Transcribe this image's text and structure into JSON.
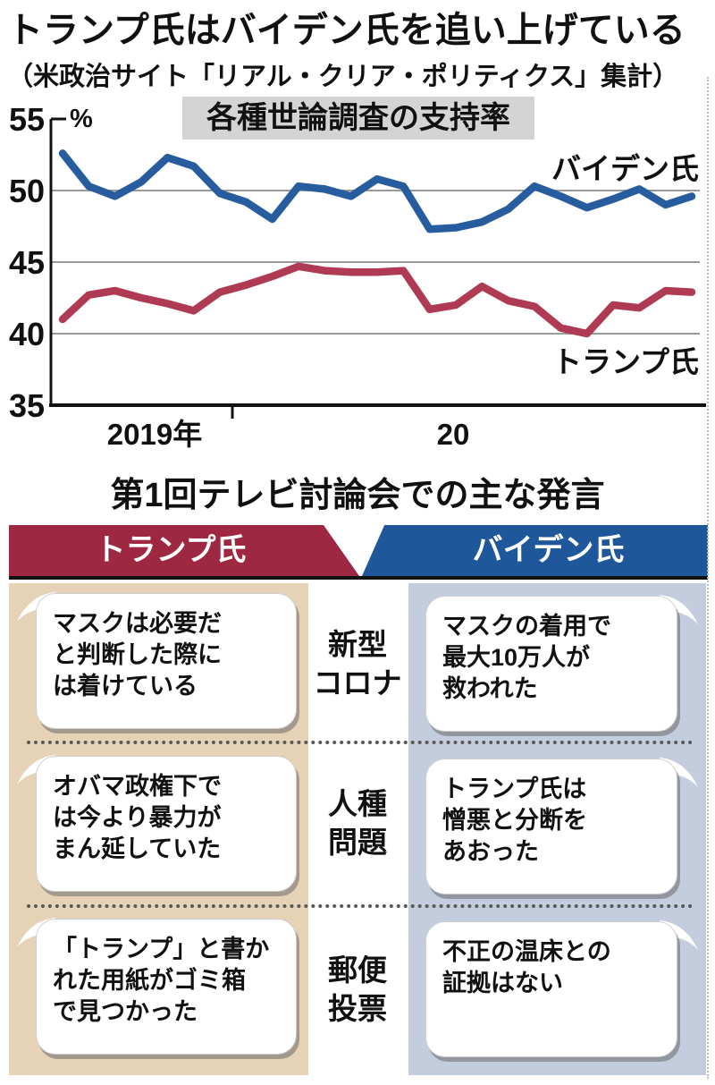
{
  "header": {
    "title": "トランプ氏はバイデン氏を追い上げている",
    "subtitle": "（米政治サイト「リアル・クリア・ポリティクス」集計）"
  },
  "chart_data": {
    "type": "line",
    "title": "各種世論調査の支持率",
    "unit_label": "%",
    "ylim": [
      35,
      55
    ],
    "yticks": [
      55,
      50,
      45,
      40,
      35
    ],
    "xticks": [
      "2019年",
      "20"
    ],
    "grid": true,
    "legend_position": "inline-right",
    "series": [
      {
        "name": "バイデン氏",
        "color": "#275d9e",
        "values": [
          52.6,
          50.3,
          49.6,
          50.6,
          52.3,
          51.7,
          49.8,
          49.2,
          48.0,
          50.3,
          50.1,
          49.6,
          50.8,
          50.3,
          47.3,
          47.4,
          47.8,
          48.7,
          50.3,
          49.6,
          48.8,
          49.4,
          50.1,
          49.0,
          49.6
        ]
      },
      {
        "name": "トランプ氏",
        "color": "#af3a54",
        "values": [
          41.0,
          42.7,
          43.0,
          42.5,
          42.1,
          41.6,
          42.9,
          43.4,
          44.0,
          44.7,
          44.4,
          44.3,
          44.3,
          44.4,
          41.7,
          42.0,
          43.3,
          42.3,
          41.9,
          40.4,
          40.0,
          42.0,
          41.8,
          43.0,
          42.9
        ]
      }
    ]
  },
  "debate": {
    "title": "第1回テレビ討論会での主な発言",
    "columns": {
      "left": "トランプ氏",
      "right": "バイデン氏"
    },
    "colors": {
      "trump_header": "#9e2742",
      "biden_header": "#1e589a",
      "left_panel": "#e6d3b7",
      "right_panel": "#c4cddd"
    },
    "rows": [
      {
        "topic": "新型\nコロナ",
        "left": "マスクは必要だ\nと判断した際に\nは着けている",
        "right": "マスクの着用で\n最大10万人が\n救われた"
      },
      {
        "topic": "人種\n問題",
        "left": "オバマ政権下で\nは今より暴力が\nまん延していた",
        "right": "トランプ氏は\n憎悪と分断を\nあおった"
      },
      {
        "topic": "郵便\n投票",
        "left": "「トランプ」と書か\nれた用紙がゴミ箱\nで見つかった",
        "right": "不正の温床との\n証拠はない"
      }
    ]
  }
}
